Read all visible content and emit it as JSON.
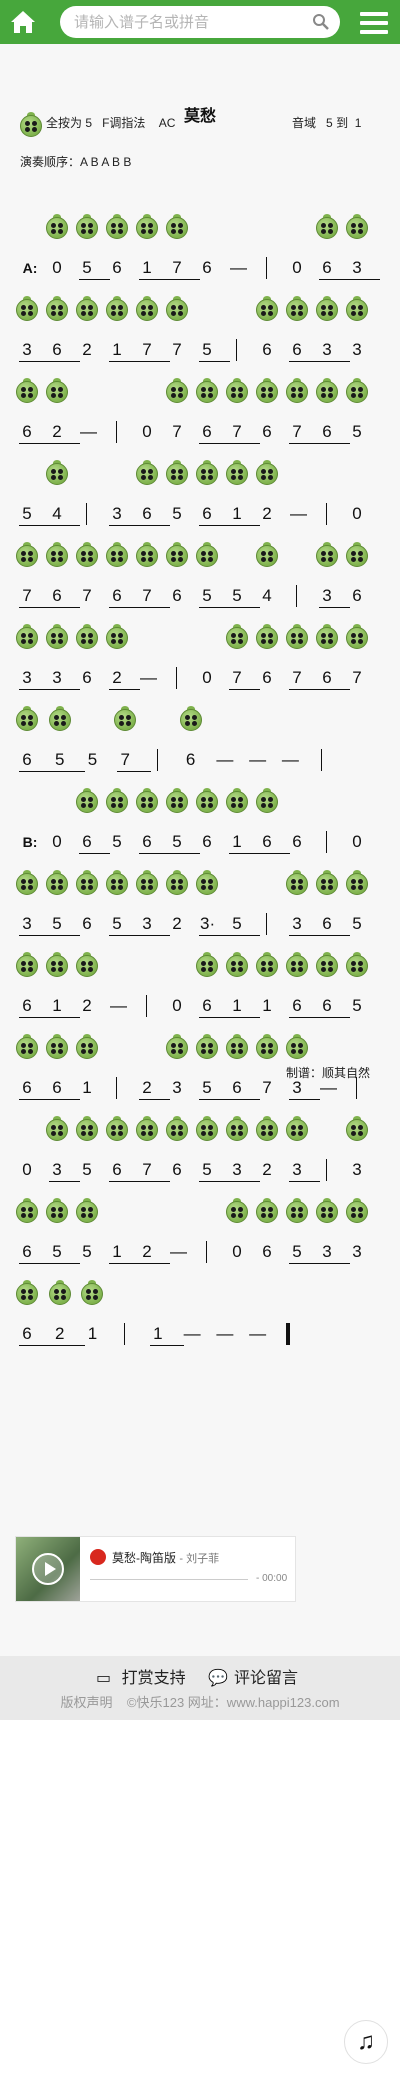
{
  "header": {
    "search_placeholder": "请输入谱子名或拼音",
    "home_icon": "home-icon",
    "menu_icon": "menu-icon"
  },
  "score": {
    "title": "莫愁",
    "key_label": "全按为",
    "key_note": "5",
    "fingering": "F调指法",
    "mode": "AC",
    "range_label": "音域",
    "range_low": "5",
    "range_to": "到",
    "range_high": "1",
    "order": "演奏顺序：A B A B B",
    "sections": {
      "a": "A:",
      "b": "B:"
    },
    "credit": "制谱：顺其自然"
  },
  "player": {
    "song": "莫愁-陶笛版",
    "artist": "- 刘子菲",
    "time": "- 00:00"
  },
  "footer": {
    "reward": "打赏支持",
    "comment": "评论留言",
    "copyright": "版权声明",
    "site": "©快乐123 网址：www.happi123.com"
  },
  "colors": {
    "accent": "#47a73c",
    "ocarina": "#7fb24d"
  }
}
